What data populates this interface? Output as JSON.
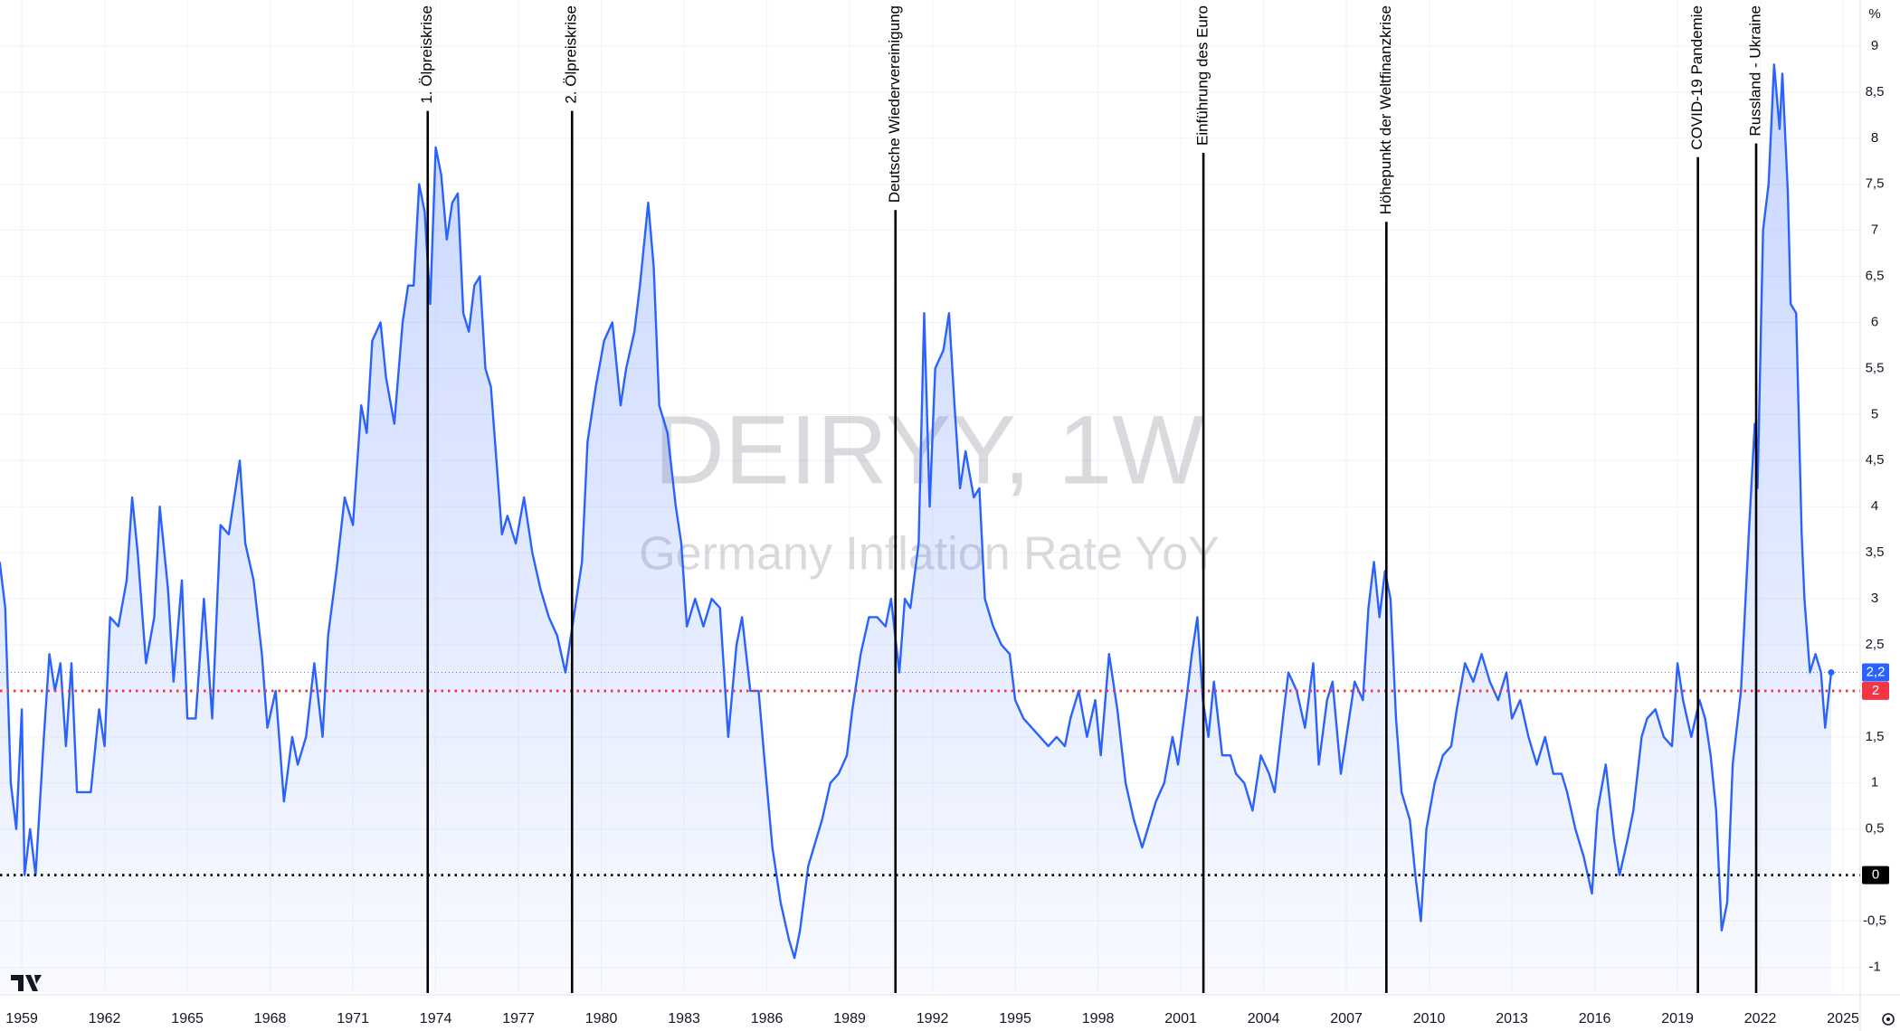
{
  "chart_data": {
    "type": "area",
    "watermark_title": "DEIRYY, 1W",
    "watermark_subtitle": "Germany Inflation Rate YoY",
    "unit_label": "%",
    "color": "#2962ff",
    "grid": true,
    "xlim": [
      1958.21,
      2025.62
    ],
    "ylim": [
      -1.28,
      9.5
    ],
    "xticks": [
      1959,
      1962,
      1965,
      1968,
      1971,
      1974,
      1977,
      1980,
      1983,
      1986,
      1989,
      1992,
      1995,
      1998,
      2001,
      2004,
      2007,
      2010,
      2013,
      2016,
      2019,
      2022,
      2025
    ],
    "yticks": [
      9,
      {
        "value": 8.5,
        "label": "8,5"
      },
      8,
      {
        "value": 7.5,
        "label": "7,5"
      },
      7,
      {
        "value": 6.5,
        "label": "6,5"
      },
      6,
      {
        "value": 5.5,
        "label": "5,5"
      },
      5,
      {
        "value": 4.5,
        "label": "4,5"
      },
      4,
      {
        "value": 3.5,
        "label": "3,5"
      },
      3,
      {
        "value": 2.5,
        "label": "2,5"
      },
      {
        "value": 1.5,
        "label": "1,5"
      },
      1,
      {
        "value": 0.5,
        "label": "0,5"
      },
      {
        "value": -0.5,
        "label": "-0,5"
      },
      -1
    ],
    "hlines": [
      {
        "value": 2,
        "label": "2",
        "color": "#f23645"
      },
      {
        "value": 0,
        "label": "0",
        "color": "#000000"
      }
    ],
    "last_label": {
      "value": 2.2,
      "label": "2,2"
    },
    "events": [
      {
        "x": 1973.71,
        "label": "1. Ölpreiskrise"
      },
      {
        "x": 1978.94,
        "label": "2. Ölpreiskrise"
      },
      {
        "x": 1990.66,
        "label": "Deutsche Wiedervereinigung"
      },
      {
        "x": 2001.82,
        "label": "Einführung des Euro"
      },
      {
        "x": 2008.45,
        "label": "Höhepunkt der Weltfinanzkrise"
      },
      {
        "x": 2019.74,
        "label": "COVID-19 Pandemie"
      },
      {
        "x": 2021.85,
        "label": "Russland - Ukraine"
      }
    ],
    "x": [
      1958.2,
      1958.4,
      1958.6,
      1958.8,
      1959.0,
      1959.1,
      1959.3,
      1959.5,
      1959.8,
      1960.0,
      1960.2,
      1960.4,
      1960.6,
      1960.8,
      1961.0,
      1961.5,
      1961.8,
      1962.0,
      1962.2,
      1962.5,
      1962.8,
      1963.0,
      1963.2,
      1963.5,
      1963.8,
      1964.0,
      1964.3,
      1964.5,
      1964.8,
      1965.0,
      1965.3,
      1965.6,
      1965.9,
      1966.2,
      1966.5,
      1966.9,
      1967.1,
      1967.4,
      1967.7,
      1967.9,
      1968.2,
      1968.5,
      1968.8,
      1969.0,
      1969.3,
      1969.6,
      1969.9,
      1970.1,
      1970.4,
      1970.7,
      1971.0,
      1971.3,
      1971.5,
      1971.7,
      1972.0,
      1972.2,
      1972.5,
      1972.8,
      1973.0,
      1973.2,
      1973.4,
      1973.6,
      1973.8,
      1974.0,
      1974.2,
      1974.4,
      1974.6,
      1974.8,
      1975.0,
      1975.2,
      1975.4,
      1975.6,
      1975.8,
      1976.0,
      1976.2,
      1976.4,
      1976.6,
      1976.9,
      1977.2,
      1977.5,
      1977.8,
      1978.1,
      1978.4,
      1978.7,
      1979.0,
      1979.3,
      1979.5,
      1979.8,
      1980.1,
      1980.4,
      1980.7,
      1980.9,
      1981.2,
      1981.4,
      1981.7,
      1981.9,
      1982.1,
      1982.4,
      1982.7,
      1982.9,
      1983.1,
      1983.4,
      1983.7,
      1984.0,
      1984.3,
      1984.6,
      1984.9,
      1985.1,
      1985.4,
      1985.7,
      1985.9,
      1986.2,
      1986.5,
      1986.8,
      1987.0,
      1987.2,
      1987.5,
      1987.8,
      1988.0,
      1988.3,
      1988.6,
      1988.9,
      1989.1,
      1989.4,
      1989.7,
      1990.0,
      1990.3,
      1990.5,
      1990.8,
      1991.0,
      1991.2,
      1991.5,
      1991.7,
      1991.9,
      1992.1,
      1992.4,
      1992.6,
      1992.8,
      1993.0,
      1993.2,
      1993.5,
      1993.7,
      1993.9,
      1994.2,
      1994.5,
      1994.8,
      1995.0,
      1995.3,
      1995.6,
      1995.9,
      1996.2,
      1996.5,
      1996.8,
      1997.0,
      1997.3,
      1997.6,
      1997.9,
      1998.1,
      1998.4,
      1998.7,
      1999.0,
      1999.3,
      1999.6,
      1999.9,
      2000.1,
      2000.4,
      2000.7,
      2000.9,
      2001.2,
      2001.4,
      2001.6,
      2001.8,
      2002.0,
      2002.2,
      2002.5,
      2002.8,
      2003.0,
      2003.3,
      2003.6,
      2003.9,
      2004.2,
      2004.4,
      2004.7,
      2004.9,
      2005.2,
      2005.5,
      2005.8,
      2006.0,
      2006.3,
      2006.5,
      2006.8,
      2007.0,
      2007.3,
      2007.6,
      2007.8,
      2008.0,
      2008.2,
      2008.4,
      2008.6,
      2008.8,
      2009.0,
      2009.3,
      2009.5,
      2009.7,
      2009.9,
      2010.2,
      2010.5,
      2010.8,
      2011.0,
      2011.3,
      2011.6,
      2011.9,
      2012.2,
      2012.5,
      2012.8,
      2013.0,
      2013.3,
      2013.6,
      2013.9,
      2014.2,
      2014.5,
      2014.8,
      2015.0,
      2015.3,
      2015.6,
      2015.9,
      2016.1,
      2016.4,
      2016.7,
      2016.9,
      2017.2,
      2017.4,
      2017.7,
      2017.9,
      2018.2,
      2018.5,
      2018.8,
      2019.0,
      2019.2,
      2019.5,
      2019.8,
      2020.0,
      2020.2,
      2020.4,
      2020.6,
      2020.8,
      2021.0,
      2021.3,
      2021.6,
      2021.8,
      2021.9,
      2022.1,
      2022.3,
      2022.5,
      2022.7,
      2022.8,
      2023.0,
      2023.1,
      2023.3,
      2023.5,
      2023.6,
      2023.8,
      2024.0,
      2024.2,
      2024.35,
      2024.57
    ],
    "values": [
      3.4,
      2.9,
      1.0,
      0.5,
      1.8,
      0.0,
      0.5,
      0.0,
      1.5,
      2.4,
      2.0,
      2.3,
      1.4,
      2.3,
      0.9,
      0.9,
      1.8,
      1.4,
      2.8,
      2.7,
      3.2,
      4.1,
      3.5,
      2.3,
      2.8,
      4.0,
      3.1,
      2.1,
      3.2,
      1.7,
      1.7,
      3.0,
      1.7,
      3.8,
      3.7,
      4.5,
      3.6,
      3.2,
      2.4,
      1.6,
      2.0,
      0.8,
      1.5,
      1.2,
      1.5,
      2.3,
      1.5,
      2.6,
      3.3,
      4.1,
      3.8,
      5.1,
      4.8,
      5.8,
      6.0,
      5.4,
      4.9,
      6.0,
      6.4,
      6.4,
      7.5,
      7.2,
      6.2,
      7.9,
      7.6,
      6.9,
      7.3,
      7.4,
      6.1,
      5.9,
      6.4,
      6.5,
      5.5,
      5.3,
      4.5,
      3.7,
      3.9,
      3.6,
      4.1,
      3.5,
      3.1,
      2.8,
      2.6,
      2.2,
      2.8,
      3.4,
      4.7,
      5.3,
      5.8,
      6.0,
      5.1,
      5.5,
      5.9,
      6.4,
      7.3,
      6.6,
      5.1,
      4.8,
      4.0,
      3.6,
      2.7,
      3.0,
      2.7,
      3.0,
      2.9,
      1.5,
      2.5,
      2.8,
      2.0,
      2.0,
      1.3,
      0.3,
      -0.3,
      -0.7,
      -0.9,
      -0.6,
      0.1,
      0.4,
      0.6,
      1.0,
      1.1,
      1.3,
      1.8,
      2.4,
      2.8,
      2.8,
      2.7,
      3.0,
      2.2,
      3.0,
      2.9,
      3.6,
      6.1,
      4.0,
      5.5,
      5.7,
      6.1,
      5.1,
      4.2,
      4.6,
      4.1,
      4.2,
      3.0,
      2.7,
      2.5,
      2.4,
      1.9,
      1.7,
      1.6,
      1.5,
      1.4,
      1.5,
      1.4,
      1.7,
      2.0,
      1.5,
      1.9,
      1.3,
      2.4,
      1.8,
      1.0,
      0.6,
      0.3,
      0.6,
      0.8,
      1.0,
      1.5,
      1.2,
      1.9,
      2.4,
      2.8,
      1.9,
      1.5,
      2.1,
      1.3,
      1.3,
      1.1,
      1.0,
      0.7,
      1.3,
      1.1,
      0.9,
      1.7,
      2.2,
      2.0,
      1.6,
      2.3,
      1.2,
      1.9,
      2.1,
      1.1,
      1.5,
      2.1,
      1.9,
      2.9,
      3.4,
      2.8,
      3.3,
      3.0,
      1.7,
      0.9,
      0.6,
      0.0,
      -0.5,
      0.5,
      1.0,
      1.3,
      1.4,
      1.8,
      2.3,
      2.1,
      2.4,
      2.1,
      1.9,
      2.2,
      1.7,
      1.9,
      1.5,
      1.2,
      1.5,
      1.1,
      1.1,
      0.9,
      0.5,
      0.2,
      -0.2,
      0.7,
      1.2,
      0.4,
      0.0,
      0.4,
      0.7,
      1.5,
      1.7,
      1.8,
      1.5,
      1.4,
      2.3,
      1.9,
      1.5,
      1.9,
      1.7,
      1.3,
      0.7,
      -0.6,
      -0.3,
      1.2,
      2.0,
      3.8,
      4.9,
      4.2,
      7.0,
      7.5,
      8.8,
      8.1,
      8.7,
      7.4,
      6.2,
      6.1,
      3.7,
      3.0,
      2.2,
      2.4,
      2.2,
      1.6,
      2.2
    ]
  }
}
